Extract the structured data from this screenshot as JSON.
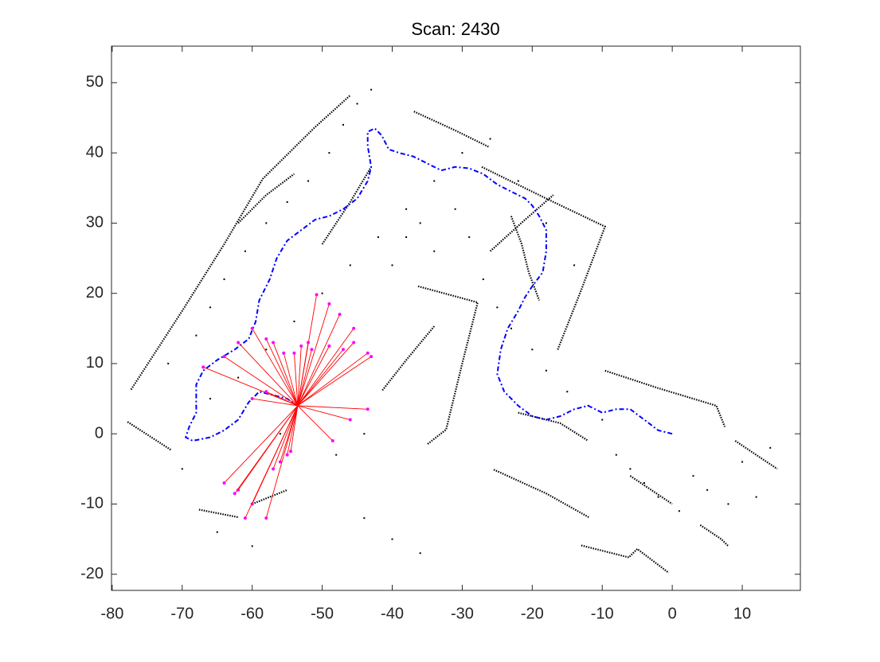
{
  "chart_data": {
    "type": "map",
    "title": "Scan: 2430",
    "xlim": [
      -80.1,
      18.3
    ],
    "ylim": [
      -22.3,
      55.2
    ],
    "xticks": [
      -80,
      -70,
      -60,
      -50,
      -40,
      -30,
      -20,
      -10,
      0,
      10
    ],
    "yticks": [
      -20,
      -10,
      0,
      10,
      20,
      30,
      40,
      50
    ],
    "walls": {
      "color": "#000000",
      "lines": [
        {
          "x": [
            -77.3,
            -70,
            -64,
            -58.5,
            -51.1,
            -46
          ],
          "y": [
            6.3,
            17.5,
            27,
            36.3,
            43.6,
            48.2
          ]
        },
        {
          "x": [
            -36.9,
            -31,
            -26.1
          ],
          "y": [
            45.9,
            43.2,
            40.8
          ]
        },
        {
          "x": [
            -27.2,
            -18,
            -9.6,
            -13,
            -16.4
          ],
          "y": [
            38,
            33.5,
            29.5,
            20.5,
            11.9
          ]
        },
        {
          "x": [
            -36.3,
            -27.8,
            -30,
            -32.3,
            -35
          ],
          "y": [
            21,
            18.7,
            10,
            0.6,
            -1.5
          ]
        },
        {
          "x": [
            -41.4,
            -38,
            -34
          ],
          "y": [
            6.2,
            10.5,
            15.3
          ]
        },
        {
          "x": [
            -9.6,
            -2,
            6.3,
            7.5
          ],
          "y": [
            9,
            6.5,
            4,
            1
          ]
        },
        {
          "x": [
            -25.5,
            -18,
            -11.9
          ],
          "y": [
            -5.1,
            -8.5,
            -11.9
          ]
        },
        {
          "x": [
            -13,
            -6.2,
            -5,
            -0.5
          ],
          "y": [
            -15.9,
            -17.6,
            -16.4,
            -19.8
          ]
        },
        {
          "x": [
            -77.8,
            -71.6
          ],
          "y": [
            1.7,
            -2.3
          ]
        },
        {
          "x": [
            -67.6,
            -61.9
          ],
          "y": [
            -10.8,
            -11.9
          ]
        },
        {
          "x": [
            -60,
            -55
          ],
          "y": [
            -10,
            -8
          ]
        },
        {
          "x": [
            -26,
            -21,
            -17
          ],
          "y": [
            26,
            30.5,
            34
          ]
        },
        {
          "x": [
            -23,
            -21.5,
            -20.5,
            -19
          ],
          "y": [
            31,
            27,
            23,
            19
          ]
        },
        {
          "x": [
            -50,
            -46,
            -43
          ],
          "y": [
            27,
            33,
            38
          ]
        },
        {
          "x": [
            -62,
            -58,
            -54
          ],
          "y": [
            30,
            34,
            37
          ]
        },
        {
          "x": [
            -6,
            -3,
            0
          ],
          "y": [
            -6,
            -8,
            -10
          ]
        },
        {
          "x": [
            -22,
            -16,
            -12
          ],
          "y": [
            3,
            1.5,
            -1
          ]
        },
        {
          "x": [
            9,
            12,
            15
          ],
          "y": [
            -1,
            -3,
            -5
          ]
        },
        {
          "x": [
            4,
            7,
            8
          ],
          "y": [
            -13,
            -15,
            -16
          ]
        }
      ]
    },
    "points": {
      "color": "#000000",
      "x": [
        -72,
        -68,
        -66,
        -64,
        -61,
        -58,
        -55,
        -52,
        -49,
        -47,
        -45,
        -43,
        -40,
        -38,
        -36,
        -34,
        -31,
        -29,
        -27,
        -25,
        -23,
        -20,
        -18,
        -15,
        -12,
        -10,
        -8,
        -6,
        -4,
        -2,
        1,
        3,
        5,
        8,
        10,
        12,
        14,
        -66,
        -62,
        -58,
        -54,
        -50,
        -46,
        -42,
        -38,
        -34,
        -30,
        -26,
        -22,
        -18,
        -14,
        -44,
        -40,
        -36,
        -70,
        -65,
        -60,
        -56,
        -48,
        -44
      ],
      "y": [
        10,
        14,
        18,
        22,
        26,
        30,
        33,
        36,
        40,
        44,
        47,
        49,
        24,
        28,
        30,
        26,
        32,
        28,
        22,
        18,
        15,
        12,
        9,
        6,
        4,
        2,
        -3,
        -5,
        -7,
        -9,
        -11,
        -6,
        -8,
        -10,
        -4,
        -9,
        -2,
        5,
        8,
        12,
        16,
        20,
        24,
        28,
        32,
        36,
        40,
        42,
        36,
        30,
        24,
        -12,
        -15,
        -17,
        -5,
        -14,
        -16,
        0,
        -3,
        0
      ]
    },
    "trajectory": {
      "color": "#0000ff",
      "x": [
        0,
        -2,
        -4,
        -6,
        -8,
        -10,
        -12,
        -14,
        -16,
        -18,
        -20,
        -22,
        -24,
        -25,
        -24.5,
        -23.5,
        -22,
        -21,
        -20,
        -18.5,
        -18,
        -18,
        -19,
        -20,
        -21,
        -23,
        -25,
        -27,
        -29,
        -31,
        -33,
        -35,
        -37,
        -39,
        -40.5,
        -41.5,
        -42.5,
        -43.5,
        -43.5,
        -43,
        -43.5,
        -45,
        -47,
        -49,
        -51,
        -53,
        -55,
        -56.5,
        -57.5,
        -59,
        -59.5,
        -60.5,
        -62.5,
        -65,
        -67,
        -68,
        -68,
        -68,
        -69,
        -69.5,
        -68.5,
        -66,
        -64,
        -62,
        -60.5,
        -59,
        -57,
        -55,
        -53.5
      ],
      "y": [
        0,
        0.5,
        2,
        3.5,
        3.5,
        3,
        4,
        3.5,
        2.5,
        2,
        2.5,
        4,
        6,
        8.5,
        12,
        15,
        17.5,
        19.5,
        21,
        23,
        26,
        29,
        31,
        32.5,
        33.5,
        34.5,
        35.5,
        37,
        37.8,
        38,
        37.5,
        38.5,
        39.5,
        40,
        40.5,
        42.5,
        43.5,
        43,
        41,
        38,
        36,
        33.5,
        32,
        31,
        30.5,
        29,
        27.5,
        25,
        22,
        19,
        16,
        13.5,
        12,
        10.5,
        9,
        7,
        5,
        3,
        1,
        -0.5,
        -1,
        -0.5,
        0.5,
        2,
        4.5,
        6,
        5.5,
        5,
        4
      ]
    },
    "scan": {
      "color": "#ff00ff",
      "ray_color": "#ff0000",
      "origin": [
        -53.5,
        4
      ],
      "x": [
        -50.8,
        -49,
        -47.5,
        -45.5,
        -45.5,
        -47,
        -43.5,
        -43,
        -49,
        -51.5,
        -52,
        -53,
        -54,
        -55.5,
        -57,
        -58,
        -60,
        -62,
        -64,
        -67,
        -58,
        -60,
        -62,
        -60,
        -58,
        -54.5,
        -55,
        -56,
        -57,
        -62.5,
        -64,
        -43.5,
        -46,
        -48.5,
        -61
      ],
      "y": [
        19.8,
        18.5,
        17,
        15,
        13,
        12,
        11.5,
        11,
        12.5,
        12,
        13,
        12.5,
        11.5,
        11.5,
        13,
        13.5,
        15,
        13,
        11,
        9.5,
        6,
        5,
        -8,
        -10,
        -12,
        -2.5,
        -3,
        -4,
        -5,
        -8.5,
        -7,
        3.5,
        2,
        -1,
        -12
      ]
    }
  }
}
